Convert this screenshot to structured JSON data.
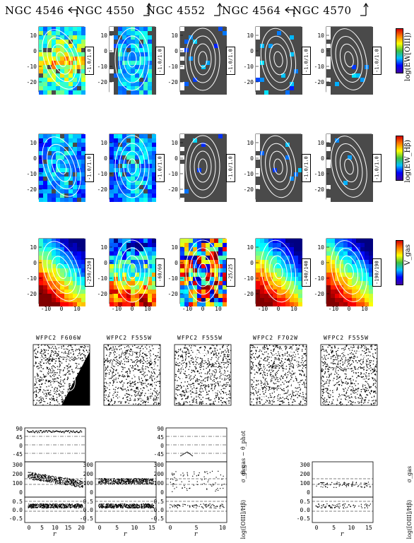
{
  "galaxies": [
    {
      "name": "NGC 4546",
      "arrow": "rotate-left",
      "maps": [
        "-1.0/1.0",
        "-1.0/1.0",
        "-250/250"
      ],
      "image_title": "WFPC2  F606W",
      "profile": true
    },
    {
      "name": "NGC 4550",
      "arrow": "up",
      "maps": [
        "-1.0/1.0",
        "-1.0/1.0",
        "-60/60"
      ],
      "image_title": "WFPC2  F555W",
      "profile": true
    },
    {
      "name": "NGC 4552",
      "arrow": "up",
      "maps": [
        "-1.0/1.0",
        "-1.0/1.0",
        "-25/25"
      ],
      "image_title": "WFPC2  F555W",
      "profile": true
    },
    {
      "name": "NGC 4564",
      "arrow": "rotate-left",
      "maps": [
        "-1.0/1.0",
        "-1.0/1.0",
        "-140/140"
      ],
      "image_title": "WFPC2  F702W",
      "profile": false
    },
    {
      "name": "NGC 4570",
      "arrow": "up",
      "maps": [
        "-1.0/1.0",
        "-1.0/1.0",
        "-190/190"
      ],
      "image_title": "WFPC2  F555W",
      "profile": true
    }
  ],
  "colorbar_labels": [
    "log(EW[OIII])",
    "log(EW_Hβ)",
    "V_gas"
  ],
  "map_ticks": {
    "y_rows": [
      [
        "10",
        "0",
        "-10",
        "-20"
      ],
      [
        "10",
        "0",
        "-10",
        "-20"
      ],
      [
        "10",
        "0",
        "-10",
        "-20"
      ]
    ],
    "x": [
      "-10",
      "0",
      "10"
    ]
  },
  "profile_ticks": {
    "pa": [
      "90",
      "45",
      "0",
      "-45"
    ],
    "sigma": [
      "300",
      "200",
      "100",
      "0"
    ],
    "ratio": [
      "0.5",
      "0.0",
      "-0.5"
    ],
    "x_0": [
      "0",
      "5",
      "10",
      "15",
      "20"
    ],
    "x_1": [
      "0",
      "5",
      "10",
      "15"
    ],
    "x_2": [
      "0",
      "5",
      "10"
    ],
    "x_4": [
      "0",
      "5",
      "10",
      "15"
    ]
  },
  "profile_labels": {
    "pa": "θ_gas − θ_phot",
    "sigma": "σ_gas",
    "ratio": "log([OIII]/Hβ)",
    "x": "r"
  }
}
